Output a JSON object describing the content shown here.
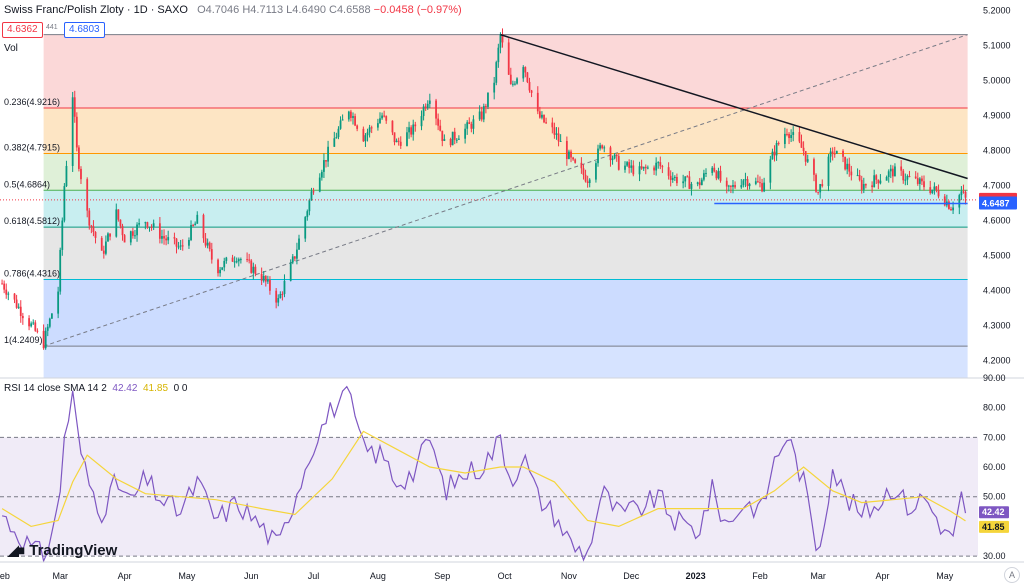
{
  "header": {
    "symbol": "Swiss Franc/Polish Zloty · 1D · SAXO",
    "open": "O4.7046",
    "high": "H4.7113",
    "low": "L4.6490",
    "close": "C4.6588",
    "change": "−0.0458 (−0.97%)",
    "bid": "4.6362",
    "ask": "4.6803",
    "spread": "441",
    "vol_label": "Vol"
  },
  "rsi_header": {
    "label": "RSI 14 close SMA 14 2",
    "rsi": "42.42",
    "sma": "41.85",
    "extra": "0 0"
  },
  "branding": {
    "name": "TradingView"
  },
  "colors": {
    "up": "#089981",
    "down": "#f23645",
    "rsi": "#7e57c2",
    "rsi_ma": "#f5d53b",
    "trend": "#131722",
    "support": "#2962ff"
  },
  "chart_data": [
    {
      "type": "candlestick",
      "title": "Swiss Franc/Polish Zloty · 1D · SAXO",
      "ylim": [
        4.15,
        5.23
      ],
      "y_ticks": [
        "5.2000",
        "5.1000",
        "5.0000",
        "4.9000",
        "4.8000",
        "4.7000",
        "4.6000",
        "4.5000",
        "4.4000",
        "4.3000",
        "4.2000"
      ],
      "x_ticks": [
        "Feb",
        "Mar",
        "Apr",
        "May",
        "Jun",
        "Jul",
        "Aug",
        "Sep",
        "Oct",
        "Nov",
        "Dec",
        "2023",
        "Feb",
        "Mar",
        "Apr",
        "May"
      ],
      "last_price": {
        "value": 4.6588,
        "label": "4.6588"
      },
      "support_level": {
        "value": 4.6487,
        "label": "4.6487"
      },
      "fib_levels": [
        {
          "ratio": 0,
          "value": 5.131,
          "label": ""
        },
        {
          "ratio": 0.236,
          "value": 4.9216,
          "label": "0.236(4.9216)"
        },
        {
          "ratio": 0.382,
          "value": 4.7915,
          "label": "0.382(4.7915)"
        },
        {
          "ratio": 0.5,
          "value": 4.6864,
          "label": "0.5(4.6864)"
        },
        {
          "ratio": 0.618,
          "value": 4.5812,
          "label": "0.618(4.5812)"
        },
        {
          "ratio": 0.786,
          "value": 4.4316,
          "label": "0.786(4.4316)"
        },
        {
          "ratio": 1,
          "value": 4.2409,
          "label": "1(4.2409)"
        }
      ],
      "price_path": [
        [
          "2022-02-01",
          4.42
        ],
        [
          "2022-02-08",
          4.36
        ],
        [
          "2022-02-15",
          4.3
        ],
        [
          "2022-02-21",
          4.25
        ],
        [
          "2022-02-28",
          4.4
        ],
        [
          "2022-03-03",
          4.7
        ],
        [
          "2022-03-07",
          4.96
        ],
        [
          "2022-03-09",
          4.8
        ],
        [
          "2022-03-14",
          4.62
        ],
        [
          "2022-03-21",
          4.5
        ],
        [
          "2022-03-28",
          4.62
        ],
        [
          "2022-04-01",
          4.55
        ],
        [
          "2022-04-11",
          4.6
        ],
        [
          "2022-04-20",
          4.55
        ],
        [
          "2022-04-28",
          4.52
        ],
        [
          "2022-05-06",
          4.6
        ],
        [
          "2022-05-15",
          4.46
        ],
        [
          "2022-05-25",
          4.5
        ],
        [
          "2022-06-06",
          4.44
        ],
        [
          "2022-06-14",
          4.37
        ],
        [
          "2022-06-22",
          4.5
        ],
        [
          "2022-07-01",
          4.7
        ],
        [
          "2022-07-10",
          4.82
        ],
        [
          "2022-07-18",
          4.92
        ],
        [
          "2022-07-25",
          4.84
        ],
        [
          "2022-08-03",
          4.9
        ],
        [
          "2022-08-10",
          4.82
        ],
        [
          "2022-08-18",
          4.86
        ],
        [
          "2022-08-26",
          4.96
        ],
        [
          "2022-09-02",
          4.82
        ],
        [
          "2022-09-12",
          4.86
        ],
        [
          "2022-09-20",
          4.9
        ],
        [
          "2022-09-26",
          5.0
        ],
        [
          "2022-09-29",
          5.13
        ],
        [
          "2022-10-04",
          4.98
        ],
        [
          "2022-10-10",
          5.05
        ],
        [
          "2022-10-17",
          4.9
        ],
        [
          "2022-10-25",
          4.85
        ],
        [
          "2022-11-03",
          4.76
        ],
        [
          "2022-11-10",
          4.72
        ],
        [
          "2022-11-17",
          4.82
        ],
        [
          "2022-11-25",
          4.76
        ],
        [
          "2022-12-05",
          4.74
        ],
        [
          "2022-12-14",
          4.76
        ],
        [
          "2022-12-22",
          4.72
        ],
        [
          "2023-01-02",
          4.7
        ],
        [
          "2023-01-09",
          4.76
        ],
        [
          "2023-01-16",
          4.68
        ],
        [
          "2023-01-24",
          4.72
        ],
        [
          "2023-02-02",
          4.7
        ],
        [
          "2023-02-08",
          4.8
        ],
        [
          "2023-02-14",
          4.86
        ],
        [
          "2023-02-22",
          4.8
        ],
        [
          "2023-03-01",
          4.68
        ],
        [
          "2023-03-08",
          4.8
        ],
        [
          "2023-03-14",
          4.76
        ],
        [
          "2023-03-22",
          4.7
        ],
        [
          "2023-03-30",
          4.72
        ],
        [
          "2023-04-06",
          4.74
        ],
        [
          "2023-04-14",
          4.72
        ],
        [
          "2023-04-21",
          4.7
        ],
        [
          "2023-04-28",
          4.68
        ],
        [
          "2023-05-04",
          4.64
        ],
        [
          "2023-05-09",
          4.68
        ],
        [
          "2023-05-11",
          4.66
        ]
      ],
      "trendline": [
        [
          "2022-09-29",
          5.131
        ],
        [
          "2023-05-12",
          4.72
        ]
      ],
      "fib_diagonal": [
        [
          "2022-02-21",
          4.2409
        ],
        [
          "2023-05-12",
          5.131
        ]
      ]
    },
    {
      "type": "line",
      "title": "RSI 14 close SMA 14 2",
      "ylim": [
        28,
        90
      ],
      "y_ticks": [
        "90.00",
        "80.00",
        "70.00",
        "60.00",
        "50.00",
        "40.00",
        "30.00"
      ],
      "bands": [
        30,
        50,
        70
      ],
      "last_rsi": {
        "value": 42.42,
        "label": "42.42"
      },
      "last_sma": {
        "value": 41.85,
        "label": "41.85"
      },
      "series": [
        {
          "values": [
            [
              "2022-02-01",
              44
            ],
            [
              "2022-02-08",
              38
            ],
            [
              "2022-02-15",
              33
            ],
            [
              "2022-02-21",
              30
            ],
            [
              "2022-02-28",
              45
            ],
            [
              "2022-03-03",
              70
            ],
            [
              "2022-03-07",
              84
            ],
            [
              "2022-03-10",
              68
            ],
            [
              "2022-03-14",
              56
            ],
            [
              "2022-03-21",
              45
            ],
            [
              "2022-03-28",
              55
            ],
            [
              "2022-04-04",
              48
            ],
            [
              "2022-04-11",
              56
            ],
            [
              "2022-04-20",
              48
            ],
            [
              "2022-04-28",
              45
            ],
            [
              "2022-05-06",
              55
            ],
            [
              "2022-05-15",
              42
            ],
            [
              "2022-05-25",
              48
            ],
            [
              "2022-06-06",
              40
            ],
            [
              "2022-06-14",
              33
            ],
            [
              "2022-06-22",
              50
            ],
            [
              "2022-07-01",
              68
            ],
            [
              "2022-07-10",
              80
            ],
            [
              "2022-07-18",
              84
            ],
            [
              "2022-07-25",
              66
            ],
            [
              "2022-08-03",
              64
            ],
            [
              "2022-08-10",
              55
            ],
            [
              "2022-08-18",
              58
            ],
            [
              "2022-08-26",
              70
            ],
            [
              "2022-09-02",
              52
            ],
            [
              "2022-09-12",
              58
            ],
            [
              "2022-09-20",
              60
            ],
            [
              "2022-09-26",
              66
            ],
            [
              "2022-09-29",
              70
            ],
            [
              "2022-10-04",
              55
            ],
            [
              "2022-10-10",
              64
            ],
            [
              "2022-10-17",
              50
            ],
            [
              "2022-10-25",
              44
            ],
            [
              "2022-11-03",
              33
            ],
            [
              "2022-11-10",
              31
            ],
            [
              "2022-11-17",
              52
            ],
            [
              "2022-11-25",
              44
            ],
            [
              "2022-12-05",
              46
            ],
            [
              "2022-12-14",
              50
            ],
            [
              "2022-12-22",
              42
            ],
            [
              "2023-01-02",
              38
            ],
            [
              "2023-01-09",
              52
            ],
            [
              "2023-01-16",
              40
            ],
            [
              "2023-01-24",
              48
            ],
            [
              "2023-02-02",
              46
            ],
            [
              "2023-02-08",
              62
            ],
            [
              "2023-02-14",
              71
            ],
            [
              "2023-02-22",
              55
            ],
            [
              "2023-03-01",
              31
            ],
            [
              "2023-03-08",
              60
            ],
            [
              "2023-03-14",
              50
            ],
            [
              "2023-03-22",
              44
            ],
            [
              "2023-03-30",
              48
            ],
            [
              "2023-04-06",
              54
            ],
            [
              "2023-04-14",
              46
            ],
            [
              "2023-04-21",
              50
            ],
            [
              "2023-04-28",
              42
            ],
            [
              "2023-05-04",
              35
            ],
            [
              "2023-05-09",
              50
            ],
            [
              "2023-05-11",
              42.42
            ]
          ]
        },
        {
          "values": [
            [
              "2022-02-01",
              46
            ],
            [
              "2022-02-15",
              40
            ],
            [
              "2022-02-28",
              42
            ],
            [
              "2022-03-07",
              55
            ],
            [
              "2022-03-14",
              64
            ],
            [
              "2022-03-28",
              56
            ],
            [
              "2022-04-11",
              51
            ],
            [
              "2022-04-28",
              50
            ],
            [
              "2022-05-15",
              49
            ],
            [
              "2022-06-06",
              46
            ],
            [
              "2022-06-22",
              44
            ],
            [
              "2022-07-10",
              56
            ],
            [
              "2022-07-25",
              72
            ],
            [
              "2022-08-10",
              66
            ],
            [
              "2022-08-26",
              60
            ],
            [
              "2022-09-12",
              58
            ],
            [
              "2022-09-29",
              60
            ],
            [
              "2022-10-10",
              60
            ],
            [
              "2022-10-25",
              55
            ],
            [
              "2022-11-10",
              42
            ],
            [
              "2022-11-25",
              40
            ],
            [
              "2022-12-14",
              46
            ],
            [
              "2023-01-02",
              46
            ],
            [
              "2023-01-24",
              46
            ],
            [
              "2023-02-08",
              52
            ],
            [
              "2023-02-22",
              60
            ],
            [
              "2023-03-08",
              52
            ],
            [
              "2023-03-22",
              48
            ],
            [
              "2023-04-06",
              49
            ],
            [
              "2023-04-21",
              50
            ],
            [
              "2023-05-04",
              45
            ],
            [
              "2023-05-11",
              41.85
            ]
          ]
        }
      ]
    }
  ]
}
